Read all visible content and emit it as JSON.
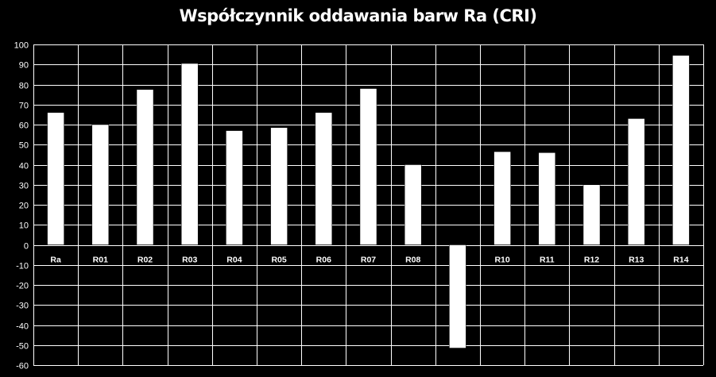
{
  "chart_data": {
    "type": "bar",
    "title": "Współczynnik oddawania barw Ra (CRI)",
    "xlabel": "",
    "ylabel": "",
    "categories": [
      "Ra",
      "R01",
      "R02",
      "R03",
      "R04",
      "R05",
      "R06",
      "R07",
      "R08",
      "",
      "R10",
      "R11",
      "R12",
      "R13",
      "R14"
    ],
    "values": [
      66,
      60,
      77.5,
      90.5,
      57,
      58.5,
      66,
      78,
      40,
      -51.5,
      46.5,
      46,
      30,
      63,
      94.5
    ],
    "ylim": [
      -60,
      100
    ],
    "yticks": [
      100,
      90,
      80,
      70,
      60,
      50,
      40,
      30,
      20,
      10,
      0,
      -10,
      -20,
      -30,
      -40,
      -50,
      -60
    ],
    "grid": true,
    "legend": "none",
    "colors": {
      "background": "#000000",
      "bar": "#ffffff",
      "grid": "#ffffff",
      "text": "#ffffff"
    }
  }
}
